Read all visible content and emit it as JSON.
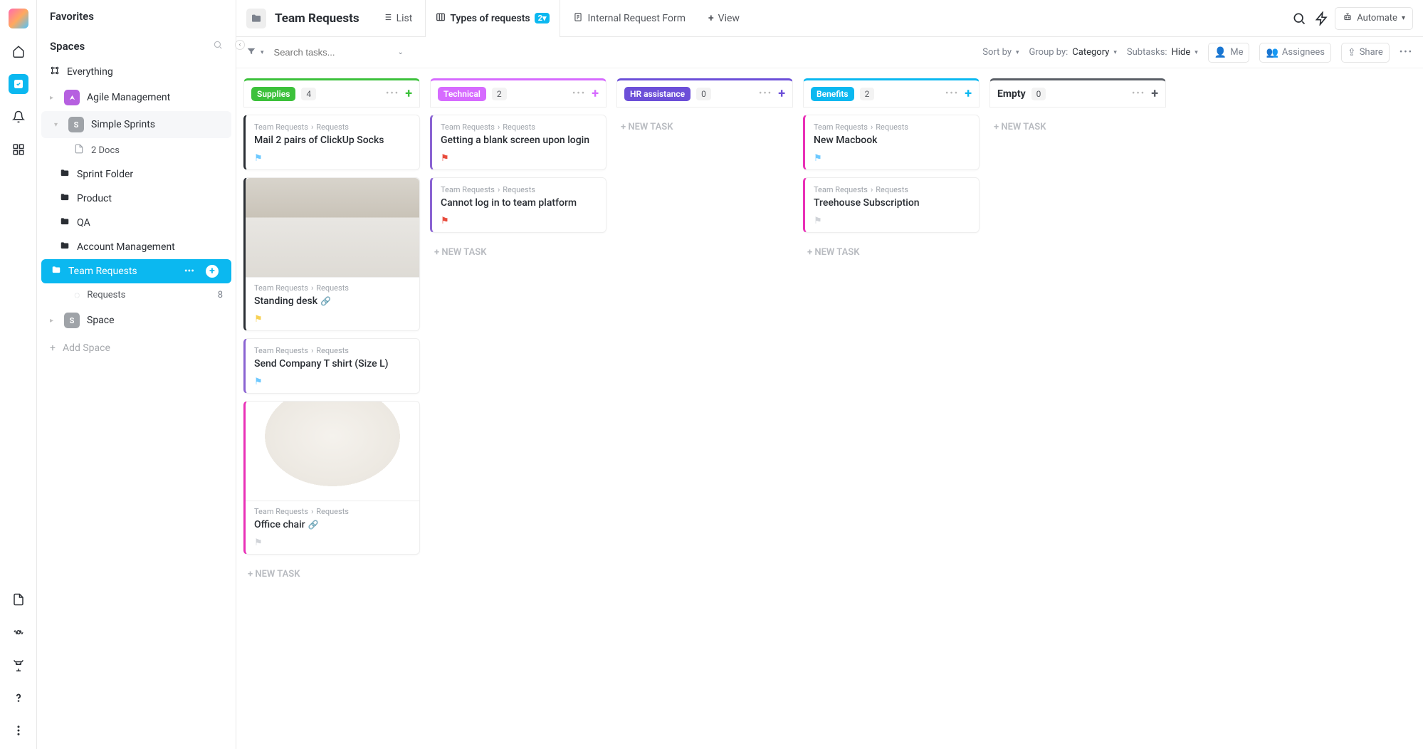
{
  "sidebar": {
    "favorites_label": "Favorites",
    "spaces_label": "Spaces",
    "everything_label": "Everything",
    "agile_label": "Agile Management",
    "agile_color": "#b660e0",
    "simple_sprints_label": "Simple Sprints",
    "simple_sprints_badge": "S",
    "simple_sprints_color": "#9fa3a8",
    "docs_label": "2 Docs",
    "folders": [
      {
        "label": "Sprint Folder"
      },
      {
        "label": "Product"
      },
      {
        "label": "QA"
      },
      {
        "label": "Account Management"
      }
    ],
    "active_folder_label": "Team Requests",
    "requests_label": "Requests",
    "requests_count": "8",
    "space_item_label": "Space",
    "space_item_badge": "S",
    "space_item_color": "#9fa3a8",
    "add_space_label": "Add Space"
  },
  "topbar": {
    "title": "Team Requests",
    "tabs": {
      "list": "List",
      "types": "Types of requests",
      "types_badge": "2",
      "form": "Internal Request Form",
      "view": "View"
    },
    "automate_label": "Automate"
  },
  "toolbar": {
    "search_placeholder": "Search tasks...",
    "sort_label": "Sort by",
    "group_label": "Group by:",
    "group_value": "Category",
    "subtasks_label": "Subtasks:",
    "subtasks_value": "Hide",
    "me_label": "Me",
    "assignees_label": "Assignees",
    "share_label": "Share"
  },
  "board": {
    "path_root": "Team Requests",
    "path_leaf": "Requests",
    "new_task_label": "+ NEW TASK",
    "lanes": [
      {
        "title": "Supplies",
        "count": "4",
        "color": "#3cc13b",
        "cards": [
          {
            "title": "Mail 2 pairs of ClickUp Socks",
            "flag_color": "#6ec9ff",
            "border": "#2a2e34"
          },
          {
            "title": "Standing desk",
            "flag_color": "#f7d154",
            "border": "#2a2e34",
            "has_image": true,
            "has_attach": true,
            "img_label": "desk"
          },
          {
            "title": "Send Company T shirt (Size L)",
            "flag_color": "#6ec9ff",
            "border": "#8a63d2"
          },
          {
            "title": "Office chair",
            "flag_color": "",
            "border": "#e930b7",
            "has_image": true,
            "has_attach": true,
            "img_label": "chair"
          }
        ]
      },
      {
        "title": "Technical",
        "count": "2",
        "color": "#d66bff",
        "cards": [
          {
            "title": "Getting a blank screen upon login",
            "flag_color": "#e84b3c",
            "border": "#8a63d2"
          },
          {
            "title": "Cannot log in to team platform",
            "flag_color": "#e84b3c",
            "border": "#8a63d2"
          }
        ]
      },
      {
        "title": "HR assistance",
        "count": "0",
        "color": "#6c4fd8",
        "cards": []
      },
      {
        "title": "Benefits",
        "count": "2",
        "color": "#0bb8f0",
        "cards": [
          {
            "title": "New Macbook",
            "flag_color": "#6ec9ff",
            "border": "#e930b7"
          },
          {
            "title": "Treehouse Subscription",
            "flag_color": "#d0d3d8",
            "border": "#e930b7"
          }
        ]
      },
      {
        "title": "Empty",
        "count": "0",
        "color": "#5a5e66",
        "plain": true,
        "cards": []
      }
    ]
  }
}
